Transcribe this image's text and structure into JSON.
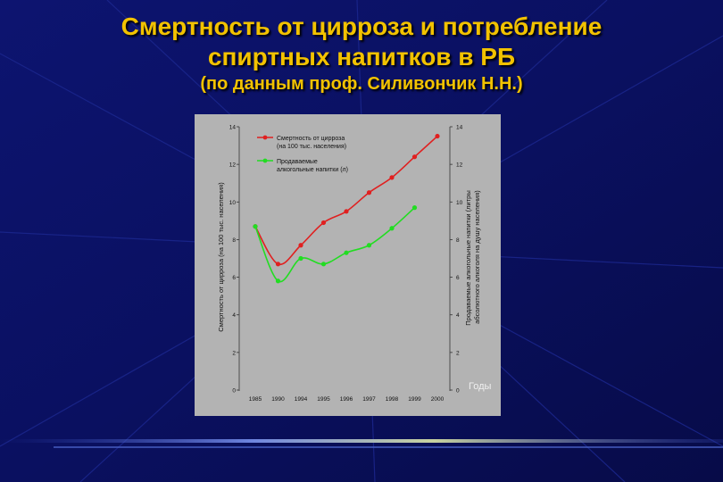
{
  "slide": {
    "title_line1": "Смертность от цирроза и потребление",
    "title_line2": "спиртных напитков в РБ",
    "subtitle": "(по данным проф. Силивончик Н.Н.)"
  },
  "chart_data": {
    "type": "line",
    "x": [
      "1985",
      "1990",
      "1994",
      "1995",
      "1996",
      "1997",
      "1998",
      "1999",
      "2000"
    ],
    "series": [
      {
        "name": "Смертность от цирроза (на 100 тыс. населения)",
        "color": "#e02020",
        "values": [
          8.7,
          6.7,
          7.7,
          8.9,
          9.5,
          10.5,
          11.3,
          12.4,
          13.5
        ]
      },
      {
        "name": "Продаваемые алкогольные напитки (л)",
        "color": "#22dd22",
        "values": [
          8.7,
          5.8,
          7.0,
          6.7,
          7.3,
          7.7,
          8.6,
          9.7,
          null
        ]
      }
    ],
    "ylabel_left": "Смертность от цирроза (на 100 тыс. населения)",
    "ylabel_right_line1": "Продаваемые алкогольные напитки (литры",
    "ylabel_right_line2": "абсолютного алкоголя на душу населения)",
    "xlabel": "Годы",
    "yticks": [
      "0",
      "2",
      "4",
      "6",
      "8",
      "10",
      "12",
      "14"
    ],
    "ylim": [
      0,
      14
    ],
    "grid": false,
    "legend_position": "top-left"
  }
}
